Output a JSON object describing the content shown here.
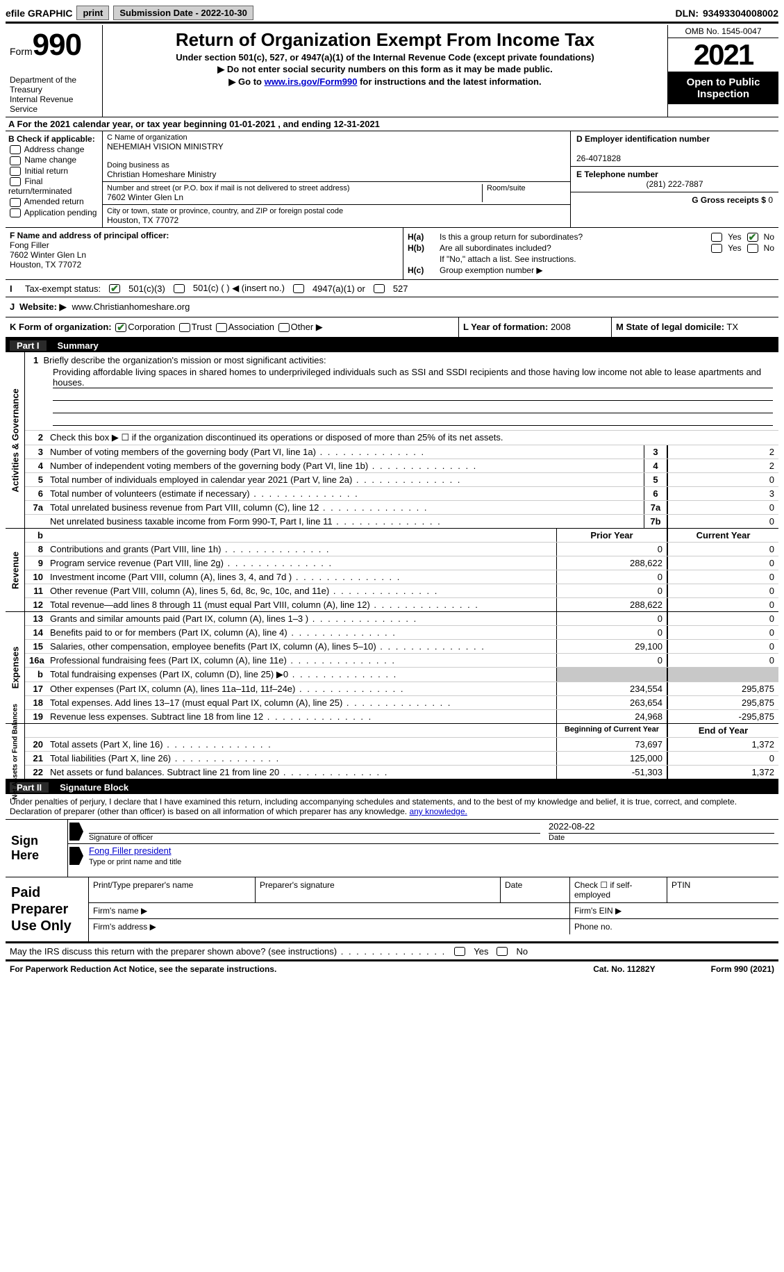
{
  "topbar": {
    "efile": "efile GRAPHIC",
    "print": "print",
    "submission": "Submission Date - 2022-10-30",
    "dln_label": "DLN:",
    "dln": "93493304008002"
  },
  "header": {
    "form_word": "Form",
    "form_num": "990",
    "dept": "Department of the Treasury\nInternal Revenue Service",
    "title": "Return of Organization Exempt From Income Tax",
    "sub1": "Under section 501(c), 527, or 4947(a)(1) of the Internal Revenue Code (except private foundations)",
    "sub2": "Do not enter social security numbers on this form as it may be made public.",
    "sub3_pre": "Go to ",
    "sub3_link": "www.irs.gov/Form990",
    "sub3_post": " for instructions and the latest information.",
    "omb": "OMB No. 1545-0047",
    "year": "2021",
    "open": "Open to Public Inspection"
  },
  "line_a": "A For the 2021 calendar year, or tax year beginning 01-01-2021    , and ending 12-31-2021",
  "box_b": {
    "hdr": "B Check if applicable:",
    "opts": [
      "Address change",
      "Name change",
      "Initial return",
      "Final return/terminated",
      "Amended return",
      "Application pending"
    ]
  },
  "box_c": {
    "name_lbl": "C Name of organization",
    "name": "NEHEMIAH VISION MINISTRY",
    "dba_lbl": "Doing business as",
    "dba": "Christian Homeshare Ministry",
    "street_lbl": "Number and street (or P.O. box if mail is not delivered to street address)",
    "street": "7602 Winter Glen Ln",
    "room_lbl": "Room/suite",
    "city_lbl": "City or town, state or province, country, and ZIP or foreign postal code",
    "city": "Houston, TX  77072"
  },
  "box_d": {
    "ein_lbl": "D Employer identification number",
    "ein": "26-4071828",
    "tel_lbl": "E Telephone number",
    "tel": "(281) 222-7887",
    "gross_lbl": "G Gross receipts $",
    "gross": "0"
  },
  "box_f": {
    "lbl": "F Name and address of principal officer:",
    "name": "Fong Filler",
    "addr1": "7602 Winter Glen Ln",
    "addr2": "Houston, TX  77072"
  },
  "box_h": {
    "a": "Is this a group return for subordinates?",
    "b": "Are all subordinates included?",
    "b_note": "If \"No,\" attach a list. See instructions.",
    "c": "Group exemption number ▶",
    "yes": "Yes",
    "no": "No"
  },
  "row_i": {
    "lbl": "Tax-exempt status:",
    "o1": "501(c)(3)",
    "o2": "501(c) (  ) ◀ (insert no.)",
    "o3": "4947(a)(1) or",
    "o4": "527"
  },
  "row_j": {
    "lbl": "Website: ▶",
    "val": "www.Christianhomeshare.org"
  },
  "row_k": {
    "lbl": "K Form of organization:",
    "o1": "Corporation",
    "o2": "Trust",
    "o3": "Association",
    "o4": "Other ▶"
  },
  "row_l": {
    "lbl": "L Year of formation:",
    "val": "2008"
  },
  "row_m": {
    "lbl": "M State of legal domicile:",
    "val": "TX"
  },
  "part1": {
    "num": "Part I",
    "title": "Summary"
  },
  "mission": {
    "lbl": "Briefly describe the organization's mission or most significant activities:",
    "text": "Providing affordable living spaces in shared homes to underprivileged individuals such as SSI and SSDI recipients and those having low income not able to lease apartments and houses."
  },
  "line2": "Check this box ▶ ☐ if the organization discontinued its operations or disposed of more than 25% of its net assets.",
  "gov_lines": [
    {
      "n": "3",
      "t": "Number of voting members of the governing body (Part VI, line 1a)",
      "box": "3",
      "v": "2"
    },
    {
      "n": "4",
      "t": "Number of independent voting members of the governing body (Part VI, line 1b)",
      "box": "4",
      "v": "2"
    },
    {
      "n": "5",
      "t": "Total number of individuals employed in calendar year 2021 (Part V, line 2a)",
      "box": "5",
      "v": "0"
    },
    {
      "n": "6",
      "t": "Total number of volunteers (estimate if necessary)",
      "box": "6",
      "v": "3"
    },
    {
      "n": "7a",
      "t": "Total unrelated business revenue from Part VIII, column (C), line 12",
      "box": "7a",
      "v": "0"
    },
    {
      "n": "",
      "t": "Net unrelated business taxable income from Form 990-T, Part I, line 11",
      "box": "7b",
      "v": "0"
    }
  ],
  "col_hdrs": {
    "prior": "Prior Year",
    "current": "Current Year"
  },
  "revenue": [
    {
      "n": "8",
      "t": "Contributions and grants (Part VIII, line 1h)",
      "p": "0",
      "c": "0"
    },
    {
      "n": "9",
      "t": "Program service revenue (Part VIII, line 2g)",
      "p": "288,622",
      "c": "0"
    },
    {
      "n": "10",
      "t": "Investment income (Part VIII, column (A), lines 3, 4, and 7d )",
      "p": "0",
      "c": "0"
    },
    {
      "n": "11",
      "t": "Other revenue (Part VIII, column (A), lines 5, 6d, 8c, 9c, 10c, and 11e)",
      "p": "0",
      "c": "0"
    },
    {
      "n": "12",
      "t": "Total revenue—add lines 8 through 11 (must equal Part VIII, column (A), line 12)",
      "p": "288,622",
      "c": "0"
    }
  ],
  "expenses": [
    {
      "n": "13",
      "t": "Grants and similar amounts paid (Part IX, column (A), lines 1–3 )",
      "p": "0",
      "c": "0"
    },
    {
      "n": "14",
      "t": "Benefits paid to or for members (Part IX, column (A), line 4)",
      "p": "0",
      "c": "0"
    },
    {
      "n": "15",
      "t": "Salaries, other compensation, employee benefits (Part IX, column (A), lines 5–10)",
      "p": "29,100",
      "c": "0"
    },
    {
      "n": "16a",
      "t": "Professional fundraising fees (Part IX, column (A), line 11e)",
      "p": "0",
      "c": "0"
    },
    {
      "n": "b",
      "t": "Total fundraising expenses (Part IX, column (D), line 25) ▶0",
      "p": "",
      "c": "",
      "shade": true
    },
    {
      "n": "17",
      "t": "Other expenses (Part IX, column (A), lines 11a–11d, 11f–24e)",
      "p": "234,554",
      "c": "295,875"
    },
    {
      "n": "18",
      "t": "Total expenses. Add lines 13–17 (must equal Part IX, column (A), line 25)",
      "p": "263,654",
      "c": "295,875"
    },
    {
      "n": "19",
      "t": "Revenue less expenses. Subtract line 18 from line 12",
      "p": "24,968",
      "c": "-295,875"
    }
  ],
  "net_hdrs": {
    "begin": "Beginning of Current Year",
    "end": "End of Year"
  },
  "net": [
    {
      "n": "20",
      "t": "Total assets (Part X, line 16)",
      "p": "73,697",
      "c": "1,372"
    },
    {
      "n": "21",
      "t": "Total liabilities (Part X, line 26)",
      "p": "125,000",
      "c": "0"
    },
    {
      "n": "22",
      "t": "Net assets or fund balances. Subtract line 21 from line 20",
      "p": "-51,303",
      "c": "1,372"
    }
  ],
  "vtabs": {
    "gov": "Activities & Governance",
    "rev": "Revenue",
    "exp": "Expenses",
    "net": "Net Assets or Fund Balances"
  },
  "part2": {
    "num": "Part II",
    "title": "Signature Block"
  },
  "sig_intro": "Under penalties of perjury, I declare that I have examined this return, including accompanying schedules and statements, and to the best of my knowledge and belief, it is true, correct, and complete. Declaration of preparer (other than officer) is based on all information of which preparer has any knowledge.",
  "sign": {
    "here": "Sign Here",
    "sig_lbl": "Signature of officer",
    "date_lbl": "Date",
    "date": "2022-08-22",
    "name": "Fong Filler  president",
    "name_lbl": "Type or print name and title"
  },
  "prep": {
    "title": "Paid Preparer Use Only",
    "r1": [
      "Print/Type preparer's name",
      "Preparer's signature",
      "Date",
      "Check ☐ if self-employed",
      "PTIN"
    ],
    "firm_name": "Firm's name   ▶",
    "firm_ein": "Firm's EIN ▶",
    "firm_addr": "Firm's address ▶",
    "phone": "Phone no."
  },
  "may": "May the IRS discuss this return with the preparer shown above? (see instructions)",
  "footer": {
    "pra": "For Paperwork Reduction Act Notice, see the separate instructions.",
    "cat": "Cat. No. 11282Y",
    "form": "Form 990 (2021)"
  },
  "colors": {
    "link": "#0000cc",
    "check_green": "#2a7a2a",
    "shade": "#c8c8c8"
  }
}
